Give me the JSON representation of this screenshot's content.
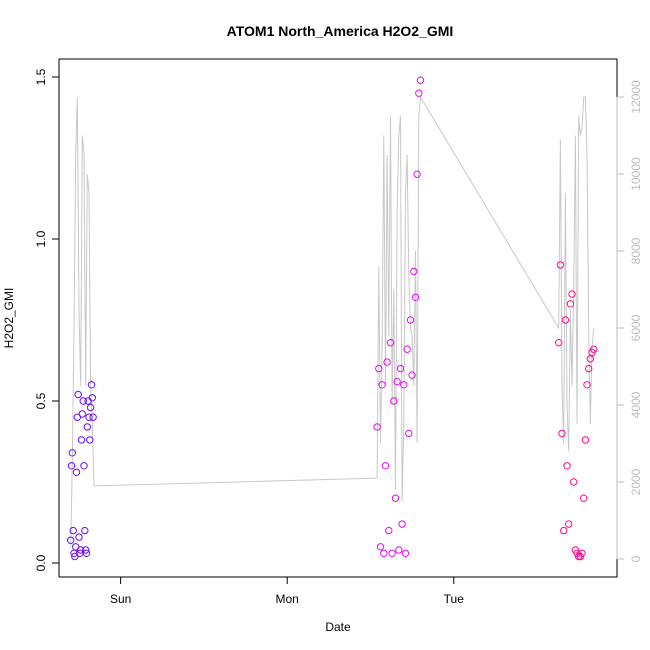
{
  "chart_data": {
    "type": "scatter",
    "title": "ATOM1 North_America H2O2_GMI",
    "xlabel": "Date",
    "ylabel": "H2O2_GMI",
    "x_ticks": [
      "Sun",
      "Mon",
      "Tue"
    ],
    "x_tick_values": [
      1,
      2,
      3
    ],
    "xlim": [
      0.63,
      3.98
    ],
    "ylim": [
      0,
      1.5
    ],
    "y_ticks": [
      0.0,
      0.5,
      1.0,
      1.5
    ],
    "y_tick_labels": [
      "0.0",
      "0.5",
      "1.0",
      "1.5"
    ],
    "y2lim": [
      0,
      12000
    ],
    "y2_ticks": [
      0,
      2000,
      4000,
      6000,
      8000,
      10000,
      12000
    ],
    "y2_tick_labels": [
      "0",
      "2000",
      "4000",
      "6000",
      "8000",
      "10000",
      "12000"
    ],
    "colors": {
      "flight1": "#6a0dff",
      "flight2": "#e010f0",
      "flight3": "#ff0a90",
      "altitude": "#c8c8c8"
    },
    "series": [
      {
        "color": "#6a0dff",
        "x": [
          0.7,
          0.705,
          0.71,
          0.715,
          0.72,
          0.725,
          0.73,
          0.735,
          0.74,
          0.745,
          0.75,
          0.755,
          0.76,
          0.765,
          0.77,
          0.775,
          0.78,
          0.785,
          0.79,
          0.795,
          0.8,
          0.805,
          0.81,
          0.815,
          0.82,
          0.825,
          0.83,
          0.835
        ],
        "y": [
          0.07,
          0.3,
          0.34,
          0.1,
          0.03,
          0.02,
          0.05,
          0.28,
          0.45,
          0.52,
          0.08,
          0.03,
          0.04,
          0.38,
          0.46,
          0.5,
          0.3,
          0.1,
          0.04,
          0.03,
          0.42,
          0.5,
          0.45,
          0.38,
          0.48,
          0.55,
          0.51,
          0.45
        ]
      },
      {
        "color": "#e010f0",
        "x": [
          2.54,
          2.55,
          2.56,
          2.57,
          2.58,
          2.59,
          2.6,
          2.61,
          2.62,
          2.63,
          2.64,
          2.65,
          2.66,
          2.67,
          2.68,
          2.69,
          2.7,
          2.71,
          2.72,
          2.73,
          2.74,
          2.75,
          2.76,
          2.77,
          2.78,
          2.79,
          2.8
        ],
        "y": [
          0.42,
          0.6,
          0.05,
          0.55,
          0.03,
          0.3,
          0.62,
          0.1,
          0.68,
          0.03,
          0.5,
          0.2,
          0.56,
          0.04,
          0.6,
          0.12,
          0.55,
          0.03,
          0.66,
          0.4,
          0.75,
          0.58,
          0.9,
          0.82,
          1.2,
          1.45,
          1.49
        ]
      },
      {
        "color": "#ff0a90",
        "x": [
          3.63,
          3.64,
          3.65,
          3.66,
          3.67,
          3.68,
          3.69,
          3.7,
          3.71,
          3.72,
          3.73,
          3.74,
          3.75,
          3.76,
          3.77,
          3.78,
          3.79,
          3.8,
          3.81,
          3.82,
          3.83,
          3.84
        ],
        "y": [
          0.68,
          0.92,
          0.4,
          0.1,
          0.75,
          0.3,
          0.12,
          0.8,
          0.83,
          0.25,
          0.04,
          0.03,
          0.02,
          0.02,
          0.03,
          0.2,
          0.38,
          0.55,
          0.6,
          0.63,
          0.65,
          0.66
        ]
      }
    ],
    "altitude_line": {
      "color": "#c8c8c8",
      "x": [
        0.7,
        0.71,
        0.72,
        0.73,
        0.74,
        0.75,
        0.76,
        0.77,
        0.78,
        0.79,
        0.8,
        0.81,
        0.82,
        0.83,
        0.84,
        2.54,
        2.55,
        2.56,
        2.57,
        2.58,
        2.59,
        2.6,
        2.61,
        2.62,
        2.63,
        2.64,
        2.65,
        2.66,
        2.67,
        2.68,
        2.69,
        2.7,
        2.71,
        2.72,
        2.73,
        2.74,
        2.75,
        2.76,
        2.77,
        2.78,
        2.79,
        2.8,
        3.63,
        3.64,
        3.65,
        3.66,
        3.67,
        3.68,
        3.69,
        3.7,
        3.71,
        3.72,
        3.73,
        3.74,
        3.75,
        3.76,
        3.77,
        3.78,
        3.79,
        3.8,
        3.81,
        3.82,
        3.83,
        3.84
      ],
      "y": [
        300,
        2500,
        6000,
        10500,
        12000,
        6500,
        4500,
        11000,
        10500,
        4500,
        10000,
        9500,
        4500,
        3500,
        1900,
        2100,
        7600,
        3000,
        5500,
        11000,
        4500,
        10500,
        5800,
        11500,
        4000,
        7000,
        1800,
        9000,
        11000,
        11500,
        1500,
        3500,
        9500,
        10500,
        7400,
        6000,
        5800,
        4500,
        8000,
        3000,
        11500,
        12000,
        6000,
        10900,
        4500,
        3000,
        9500,
        4000,
        2800,
        6500,
        4500,
        7000,
        11000,
        3500,
        11500,
        11000,
        11200,
        12000,
        12000,
        10500,
        6000,
        3500,
        5500,
        6000
      ]
    }
  }
}
